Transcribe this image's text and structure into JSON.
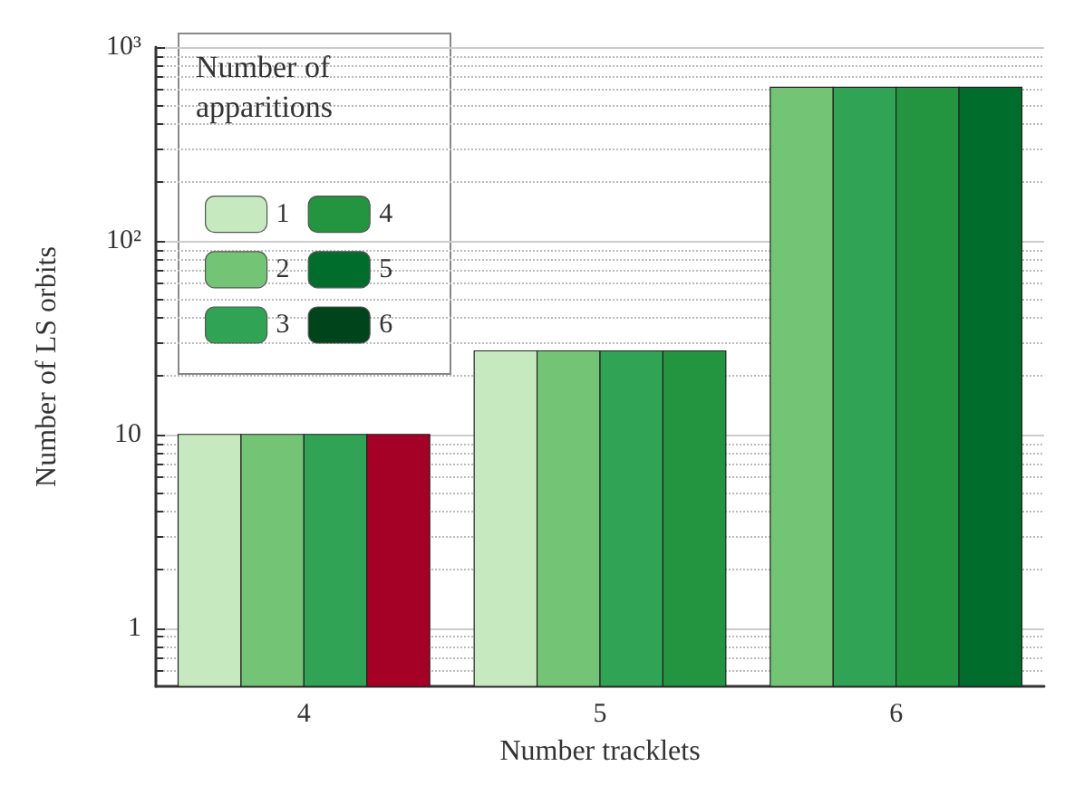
{
  "chart_data": {
    "type": "bar",
    "xlabel": "Number tracklets",
    "ylabel": "Number of LS orbits",
    "legend_title": "Number of apparitions",
    "legend": "top left",
    "grid": "y",
    "log": "y",
    "categories": [
      "4",
      "5",
      "6"
    ],
    "ylim": [
      0.5,
      1000
    ],
    "yticks": [
      1,
      10,
      {
        "value": 100,
        "label": "10²"
      },
      {
        "value": 1000,
        "label": "10³"
      }
    ],
    "series": [
      {
        "name": "1",
        "color": "#c7e9c0",
        "values": [
          10,
          27,
          null
        ]
      },
      {
        "name": "2",
        "color": "#74c476",
        "values": [
          10,
          27,
          620
        ]
      },
      {
        "name": "3",
        "color": "#31a354",
        "values": [
          10,
          27,
          620
        ]
      },
      {
        "name": "4",
        "color": "#23943f",
        "colors": [
          "#a50026",
          "#23943f",
          "#23943f"
        ],
        "values": [
          10,
          27,
          620
        ]
      },
      {
        "name": "5",
        "color": "#006d2c",
        "values": [
          null,
          null,
          620
        ]
      },
      {
        "name": "6",
        "color": "#00441b",
        "values": [
          null,
          null,
          null
        ]
      }
    ]
  }
}
